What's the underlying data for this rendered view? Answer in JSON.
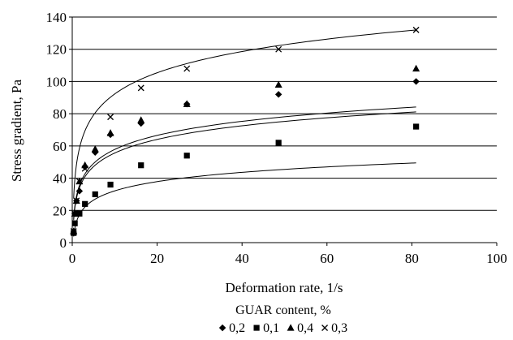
{
  "chart_data": {
    "type": "scatter",
    "xlabel": "Deformation rate, 1/s",
    "ylabel": "Stress gradient, Pa",
    "xlim": [
      0,
      100
    ],
    "ylim": [
      0,
      140
    ],
    "xticks": [
      0,
      20,
      40,
      60,
      80,
      100
    ],
    "yticks": [
      0,
      20,
      40,
      60,
      80,
      100,
      120,
      140
    ],
    "horizontal_grid": true,
    "vertical_grid": false,
    "legend_title": "GUAR content, %",
    "legend_position": "bottom",
    "trendlines": "logarithmic",
    "series": [
      {
        "name": "0,2",
        "marker": "diamond",
        "trend": {
          "a": 12.2,
          "b": 27.5
        },
        "points": [
          [
            0.33,
            6
          ],
          [
            0.6,
            18
          ],
          [
            1,
            26
          ],
          [
            1.7,
            32
          ],
          [
            3,
            47
          ],
          [
            5.4,
            56
          ],
          [
            9,
            67
          ],
          [
            16.2,
            74
          ],
          [
            27,
            86
          ],
          [
            48.6,
            92
          ],
          [
            81,
            100
          ]
        ]
      },
      {
        "name": "0,1",
        "marker": "square",
        "trend": {
          "a": 8.3,
          "b": 13.0
        },
        "points": [
          [
            0.33,
            6
          ],
          [
            0.6,
            12
          ],
          [
            1,
            18
          ],
          [
            1.7,
            18
          ],
          [
            3,
            24
          ],
          [
            5.4,
            30
          ],
          [
            9,
            36
          ],
          [
            16.2,
            48
          ],
          [
            27,
            54
          ],
          [
            48.6,
            62
          ],
          [
            81,
            72
          ]
        ]
      },
      {
        "name": "0,4",
        "marker": "triangle",
        "trend": {
          "a": 12.6,
          "b": 28.8
        },
        "points": [
          [
            0.33,
            7
          ],
          [
            0.6,
            18
          ],
          [
            1,
            26
          ],
          [
            1.7,
            38
          ],
          [
            3,
            48
          ],
          [
            5.4,
            58
          ],
          [
            9,
            68
          ],
          [
            16.2,
            76
          ],
          [
            27,
            86
          ],
          [
            48.6,
            98
          ],
          [
            81,
            108
          ]
        ]
      },
      {
        "name": "0,3",
        "marker": "cross",
        "trend": {
          "a": 19.0,
          "b": 48.5
        },
        "points": [
          [
            0.33,
            7
          ],
          [
            0.6,
            18
          ],
          [
            1,
            26
          ],
          [
            1.7,
            38
          ],
          [
            3,
            46
          ],
          [
            9,
            78
          ],
          [
            16.2,
            96
          ],
          [
            27,
            108
          ],
          [
            48.6,
            120
          ],
          [
            81,
            132
          ]
        ]
      }
    ]
  }
}
